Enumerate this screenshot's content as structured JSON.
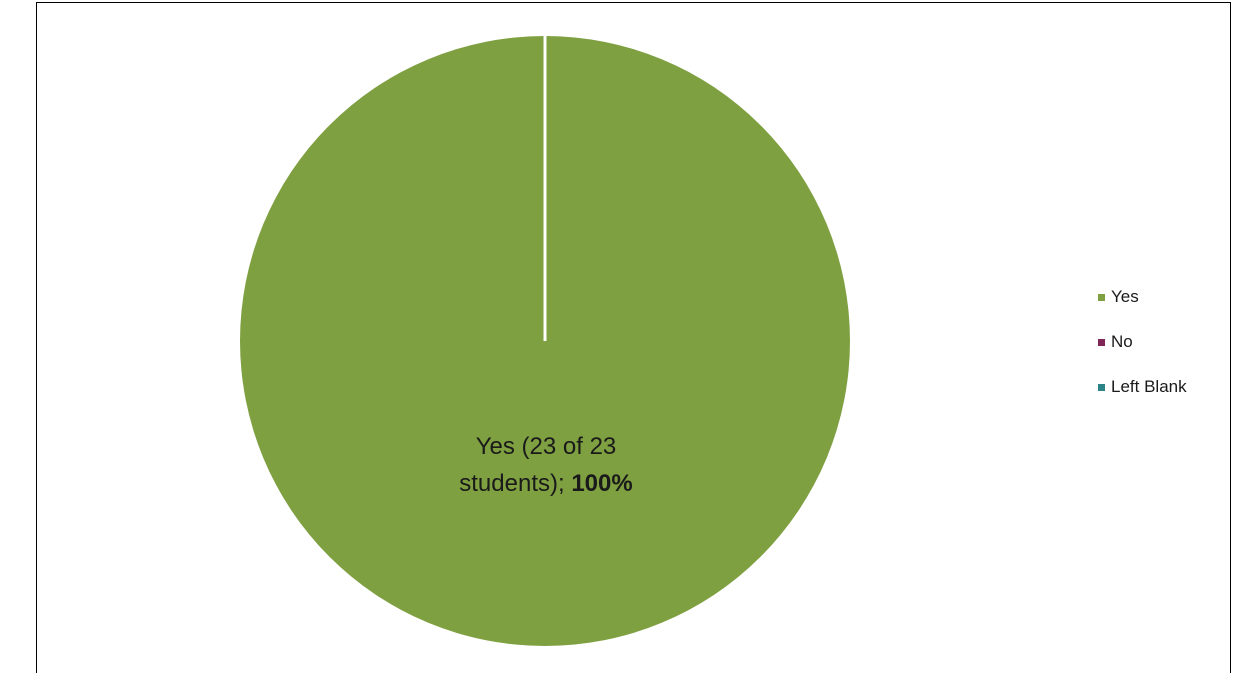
{
  "chart_data": {
    "type": "pie",
    "categories": [
      "Yes",
      "No",
      "Left Blank"
    ],
    "values": [
      23,
      0,
      0
    ],
    "total": 23,
    "colors": [
      "#7fa041",
      "#7f2656",
      "#2c8489"
    ],
    "data_labels": [
      {
        "line1": "Yes (23 of 23",
        "line2": "students); ",
        "percent": "100%"
      }
    ],
    "legend": {
      "position": "right",
      "items": [
        {
          "label": "Yes",
          "color": "#7fa041"
        },
        {
          "label": "No",
          "color": "#7f2656"
        },
        {
          "label": "Left Blank",
          "color": "#2c8489"
        }
      ]
    }
  }
}
